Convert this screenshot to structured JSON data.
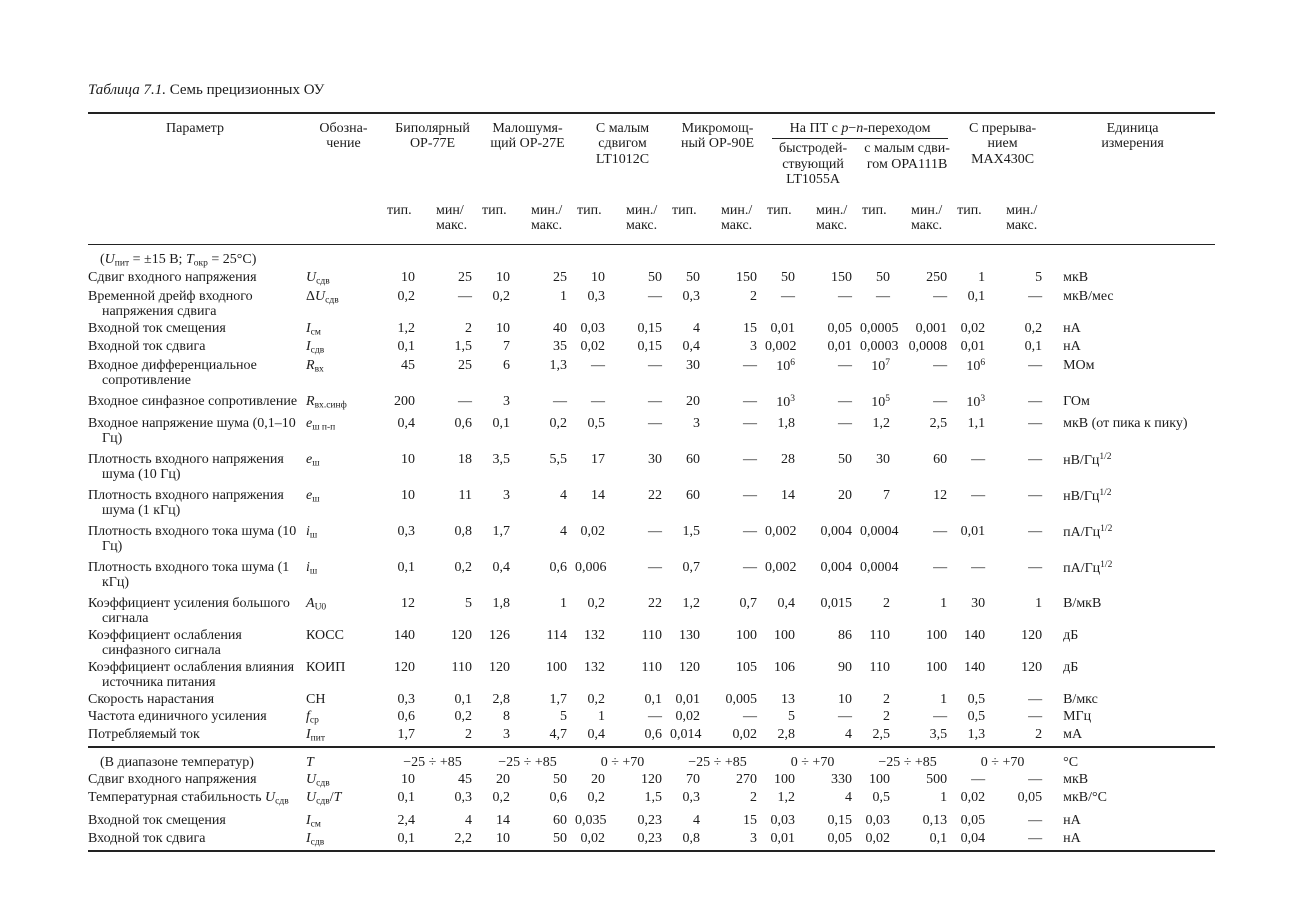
{
  "page": {
    "title_italic": "Таблица 7.1.",
    "title_rest": " Семь прецизионных ОУ"
  },
  "header": {
    "param": "Параметр",
    "symbol_lines": [
      "Обозна-",
      "чение"
    ],
    "g0": [
      "Биполярный",
      "ОР-77Е"
    ],
    "g1": [
      "Малошумя-",
      "щий ОР-27Е"
    ],
    "g2": [
      "С малым",
      "сдвигом",
      "LT1012C"
    ],
    "g3": [
      "Микромощ-",
      "ный ОР-90Е"
    ],
    "pn": {
      "pre": "На ПТ с ",
      "p": "p",
      "dash": "−",
      "n": "n",
      "post": "-переходом",
      "sub0": [
        "быстродей-",
        "ствующий",
        "LT1055A"
      ],
      "sub1": [
        "с малым сдви-",
        "гом OPA111B"
      ]
    },
    "g5": [
      "С прерыва-",
      "нием",
      "MAX430C"
    ],
    "unit_lines": [
      "Единица",
      "измерения"
    ],
    "typ": "тип.",
    "min_first": "мин/",
    "min": "мин./",
    "max": "макс."
  },
  "table": {
    "sections": [
      {
        "rows": [
          {
            "heading": [
              {
                "t": "("
              },
              {
                "t": "U",
                "i": 1
              },
              {
                "t": "пит",
                "s": 1
              },
              {
                "t": " = ±15 В;  "
              },
              {
                "t": "T",
                "i": 1
              },
              {
                "t": "окр",
                "s": 1
              },
              {
                "t": " = 25°C)"
              }
            ]
          },
          {
            "param": "Сдвиг входного напряжения",
            "sym": [
              {
                "t": "U",
                "i": 1
              },
              {
                "t": "сдв",
                "s": 1
              }
            ],
            "vals": [
              "10",
              "25",
              "10",
              "25",
              "10",
              "50",
              "50",
              "150",
              "50",
              "150",
              "50",
              "250",
              "1",
              "5"
            ],
            "unit": "мкВ"
          },
          {
            "param": "Временной дрейф входного напряжения сдвига",
            "sym": [
              {
                "t": "Δ"
              },
              {
                "t": "U",
                "i": 1
              },
              {
                "t": "сдв",
                "s": 1
              }
            ],
            "vals": [
              "0,2",
              "—",
              "0,2",
              "1",
              "0,3",
              "—",
              "0,3",
              "2",
              "—",
              "—",
              "—",
              "—",
              "0,1",
              "—"
            ],
            "unit": "мкВ/мес"
          },
          {
            "param": "Входной ток смещения",
            "sym": [
              {
                "t": "I",
                "i": 1
              },
              {
                "t": "см",
                "s": 1
              }
            ],
            "vals": [
              "1,2",
              "2",
              "10",
              "40",
              "0,03",
              "0,15",
              "4",
              "15",
              "0,01",
              "0,05",
              "0,0005",
              "0,001",
              "0,02",
              "0,2"
            ],
            "unit": "нА"
          },
          {
            "param": "Входной ток сдвига",
            "sym": [
              {
                "t": "I",
                "i": 1
              },
              {
                "t": "сдв",
                "s": 1
              }
            ],
            "vals": [
              "0,1",
              "1,5",
              "7",
              "35",
              "0,02",
              "0,15",
              "0,4",
              "3",
              "0,002",
              "0,01",
              "0,0003",
              "0,0008",
              "0,01",
              "0,1"
            ],
            "unit": "нА"
          },
          {
            "param": "Входное дифференциальное сопротивление",
            "sym": [
              {
                "t": "R",
                "i": 1
              },
              {
                "t": "вх",
                "s": 1
              }
            ],
            "vals": [
              "45",
              "25",
              "6",
              "1,3",
              "—",
              "—",
              "30",
              "—",
              [
                {
                  "t": "10"
                },
                {
                  "t": "6",
                  "u": 1
                }
              ],
              "—",
              [
                {
                  "t": "10"
                },
                {
                  "t": "7",
                  "u": 1
                }
              ],
              "—",
              [
                {
                  "t": "10"
                },
                {
                  "t": "6",
                  "u": 1
                }
              ],
              "—"
            ],
            "unit": "МОм"
          },
          {
            "gap": 1,
            "param": "Входное синфазное сопротивление",
            "sym": [
              {
                "t": "R",
                "i": 1
              },
              {
                "t": "вх.синф",
                "s": 1
              }
            ],
            "vals": [
              "200",
              "—",
              "3",
              "—",
              "—",
              "—",
              "20",
              "—",
              [
                {
                  "t": "10"
                },
                {
                  "t": "3",
                  "u": 1
                }
              ],
              "—",
              [
                {
                  "t": "10"
                },
                {
                  "t": "5",
                  "u": 1
                }
              ],
              "—",
              [
                {
                  "t": "10"
                },
                {
                  "t": "3",
                  "u": 1
                }
              ],
              "—"
            ],
            "unit": "ГОм"
          },
          {
            "gap": 1,
            "param": "Входное напряжение шума (0,1–10 Гц)",
            "sym": [
              {
                "t": "e",
                "i": 1
              },
              {
                "t": "ш п-п",
                "s": 1
              }
            ],
            "vals": [
              "0,4",
              "0,6",
              "0,1",
              "0,2",
              "0,5",
              "—",
              "3",
              "—",
              "1,8",
              "—",
              "1,2",
              "2,5",
              "1,1",
              "—"
            ],
            "unit": "мкВ (от пика к пику)"
          },
          {
            "gap": 1,
            "param": "Плотность входного напряжения шума (10 Гц)",
            "sym": [
              {
                "t": "e",
                "i": 1
              },
              {
                "t": "ш",
                "s": 1
              }
            ],
            "vals": [
              "10",
              "18",
              "3,5",
              "5,5",
              "17",
              "30",
              "60",
              "—",
              "28",
              "50",
              "30",
              "60",
              "—",
              "—"
            ],
            "unit": [
              {
                "t": "нВ/Гц"
              },
              {
                "t": "1/2",
                "u": 1
              }
            ]
          },
          {
            "gap": 1,
            "param": "Плотность входного напряжения шума (1 кГц)",
            "sym": [
              {
                "t": "e",
                "i": 1
              },
              {
                "t": "ш",
                "s": 1
              }
            ],
            "vals": [
              "10",
              "11",
              "3",
              "4",
              "14",
              "22",
              "60",
              "—",
              "14",
              "20",
              "7",
              "12",
              "—",
              "—"
            ],
            "unit": [
              {
                "t": "нВ/Гц"
              },
              {
                "t": "1/2",
                "u": 1
              }
            ]
          },
          {
            "gap": 1,
            "param": "Плотность входного тока шума (10 Гц)",
            "sym": [
              {
                "t": "i",
                "i": 1
              },
              {
                "t": "ш",
                "s": 1
              }
            ],
            "vals": [
              "0,3",
              "0,8",
              "1,7",
              "4",
              "0,02",
              "—",
              "1,5",
              "—",
              "0,002",
              "0,004",
              "0,0004",
              "—",
              "0,01",
              "—"
            ],
            "unit": [
              {
                "t": "пА/Гц"
              },
              {
                "t": "1/2",
                "u": 1
              }
            ]
          },
          {
            "gap": 1,
            "param": "Плотность входного тока шума (1 кГц)",
            "sym": [
              {
                "t": "i",
                "i": 1
              },
              {
                "t": "ш",
                "s": 1
              }
            ],
            "vals": [
              "0,1",
              "0,2",
              "0,4",
              "0,6",
              "0,006",
              "—",
              "0,7",
              "—",
              "0,002",
              "0,004",
              "0,0004",
              "—",
              "—",
              "—"
            ],
            "unit": [
              {
                "t": "пА/Гц"
              },
              {
                "t": "1/2",
                "u": 1
              }
            ]
          },
          {
            "gap": 1,
            "param": "Коэффициент усиления большого сигнала",
            "sym": [
              {
                "t": "A",
                "i": 1
              },
              {
                "t": "U0",
                "s": 1
              }
            ],
            "vals": [
              "12",
              "5",
              "1,8",
              "1",
              "0,2",
              "22",
              "1,2",
              "0,7",
              "0,4",
              "0,015",
              "2",
              "1",
              "30",
              "1"
            ],
            "unit": "В/мкВ"
          },
          {
            "param": "Коэффициент ослабления синфазного сигнала",
            "sym": "КОСС",
            "vals": [
              "140",
              "120",
              "126",
              "114",
              "132",
              "110",
              "130",
              "100",
              "100",
              "86",
              "110",
              "100",
              "140",
              "120"
            ],
            "unit": "дБ"
          },
          {
            "param": "Коэффициент ослабления влияния источника питания",
            "sym": "КОИП",
            "vals": [
              "120",
              "110",
              "120",
              "100",
              "132",
              "110",
              "120",
              "105",
              "106",
              "90",
              "110",
              "100",
              "140",
              "120"
            ],
            "unit": "дБ"
          },
          {
            "param": "Скорость нарастания",
            "sym": "СН",
            "vals": [
              "0,3",
              "0,1",
              "2,8",
              "1,7",
              "0,2",
              "0,1",
              "0,01",
              "0,005",
              "13",
              "10",
              "2",
              "1",
              "0,5",
              "—"
            ],
            "unit": "В/мкс"
          },
          {
            "param": "Частота единичного усиления",
            "sym": [
              {
                "t": "f",
                "i": 1
              },
              {
                "t": "ср",
                "s": 1
              }
            ],
            "vals": [
              "0,6",
              "0,2",
              "8",
              "5",
              "1",
              "—",
              "0,02",
              "—",
              "5",
              "—",
              "2",
              "—",
              "0,5",
              "—"
            ],
            "unit": "МГц"
          },
          {
            "param": "Потребляемый ток",
            "sym": [
              {
                "t": "I",
                "i": 1
              },
              {
                "t": "пит",
                "s": 1
              }
            ],
            "vals": [
              "1,7",
              "2",
              "3",
              "4,7",
              "0,4",
              "0,6",
              "0,014",
              "0,02",
              "2,8",
              "4",
              "2,5",
              "3,5",
              "1,3",
              "2"
            ],
            "unit": "мА"
          }
        ]
      },
      {
        "rows": [
          {
            "indent": 1,
            "param": "(В диапазоне температур)",
            "sym": [
              {
                "t": "T",
                "i": 1
              }
            ],
            "spans": [
              "−25 ÷ +85",
              "−25 ÷ +85",
              "0 ÷ +70",
              "−25 ÷ +85",
              "0 ÷ +70",
              "−25 ÷ +85",
              "0 ÷ +70"
            ],
            "unit": "°C"
          },
          {
            "param": "Сдвиг входного напряжения",
            "sym": [
              {
                "t": "U",
                "i": 1
              },
              {
                "t": "сдв",
                "s": 1
              }
            ],
            "vals": [
              "10",
              "45",
              "20",
              "50",
              "20",
              "120",
              "70",
              "270",
              "100",
              "330",
              "100",
              "500",
              "—",
              "—"
            ],
            "unit": "мкВ"
          },
          {
            "param": [
              {
                "t": "Температурная стабильность "
              },
              {
                "t": "U",
                "i": 1
              },
              {
                "t": "сдв",
                "s": 1
              }
            ],
            "sym": [
              {
                "t": "U",
                "i": 1
              },
              {
                "t": "сдв",
                "s": 1
              },
              {
                "t": "/"
              },
              {
                "t": "T",
                "i": 1
              }
            ],
            "vals": [
              "0,1",
              "0,3",
              "0,2",
              "0,6",
              "0,2",
              "1,5",
              "0,3",
              "2",
              "1,2",
              "4",
              "0,5",
              "1",
              "0,02",
              "0,05"
            ],
            "unit": "мкВ/°C"
          },
          {
            "gap": 1,
            "param": "Входной ток смещения",
            "sym": [
              {
                "t": "I",
                "i": 1
              },
              {
                "t": "см",
                "s": 1
              }
            ],
            "vals": [
              "2,4",
              "4",
              "14",
              "60",
              "0,035",
              "0,23",
              "4",
              "15",
              "0,03",
              "0,15",
              "0,03",
              "0,13",
              "0,05",
              "—"
            ],
            "unit": "нА"
          },
          {
            "param": "Входной ток сдвига",
            "sym": [
              {
                "t": "I",
                "i": 1
              },
              {
                "t": "сдв",
                "s": 1
              }
            ],
            "vals": [
              "0,1",
              "2,2",
              "10",
              "50",
              "0,02",
              "0,23",
              "0,8",
              "3",
              "0,01",
              "0,05",
              "0,02",
              "0,1",
              "0,04",
              "—"
            ],
            "unit": "нА"
          }
        ]
      }
    ]
  }
}
